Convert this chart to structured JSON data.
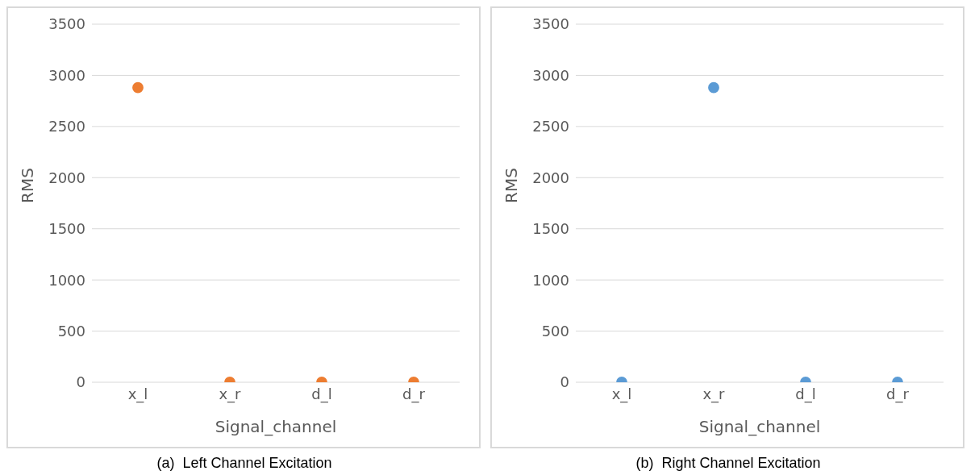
{
  "chart_data": [
    {
      "type": "scatter",
      "xlabel": "Signal_channel",
      "ylabel": "RMS",
      "categories": [
        "x_l",
        "x_r",
        "d_l",
        "d_r"
      ],
      "ylim": [
        0,
        3500
      ],
      "yticks": [
        0,
        500,
        1000,
        1500,
        2000,
        2500,
        3000,
        3500
      ],
      "grid": "y",
      "marker": "circle",
      "annotations": [
        "(a)  Left Channel Excitation"
      ],
      "series": [
        {
          "color": "#ed7d31",
          "values": [
            2880,
            0,
            0,
            0
          ]
        }
      ]
    },
    {
      "type": "scatter",
      "xlabel": "Signal_channel",
      "ylabel": "RMS",
      "categories": [
        "x_l",
        "x_r",
        "d_l",
        "d_r"
      ],
      "ylim": [
        0,
        3500
      ],
      "yticks": [
        0,
        500,
        1000,
        1500,
        2000,
        2500,
        3000,
        3500
      ],
      "grid": "y",
      "marker": "circle",
      "annotations": [
        "(b)  Right Channel Excitation"
      ],
      "series": [
        {
          "color": "#5b9bd5",
          "values": [
            0,
            2880,
            0,
            0
          ]
        }
      ]
    }
  ]
}
